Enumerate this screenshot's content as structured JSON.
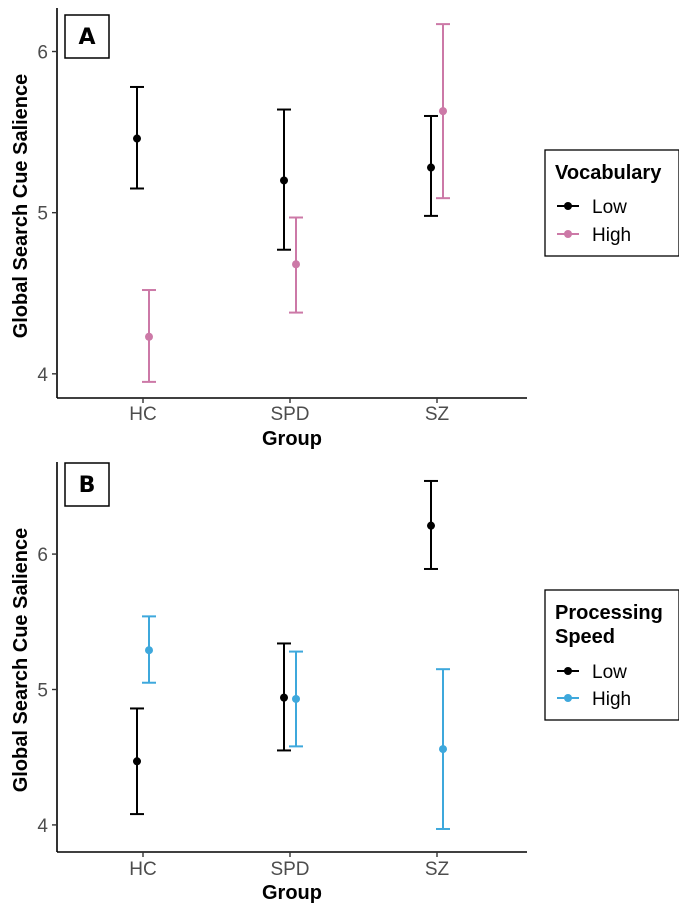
{
  "colors": {
    "low": "#000000",
    "vocab_high": "#cc79a7",
    "speed_high": "#3ea8dc"
  },
  "chart_data": [
    {
      "type": "scatter",
      "panel_label": "A",
      "xlabel": "Group",
      "ylabel": "Global Search Cue Salience",
      "categories": [
        "HC",
        "SPD",
        "SZ"
      ],
      "ylim": [
        3.85,
        6.27
      ],
      "yticks": [
        4,
        5,
        6
      ],
      "grid": false,
      "legend": {
        "title": [
          "Vocabulary"
        ],
        "placement": "right",
        "items": [
          "Low",
          "High"
        ]
      },
      "series": [
        {
          "name": "Low",
          "color": "#000000",
          "points": [
            {
              "category": "HC",
              "mean": 5.46,
              "lower": 5.15,
              "upper": 5.78
            },
            {
              "category": "SPD",
              "mean": 5.2,
              "lower": 4.77,
              "upper": 5.64
            },
            {
              "category": "SZ",
              "mean": 5.28,
              "lower": 4.98,
              "upper": 5.6
            }
          ]
        },
        {
          "name": "High",
          "color": "#cc79a7",
          "points": [
            {
              "category": "HC",
              "mean": 4.23,
              "lower": 3.95,
              "upper": 4.52
            },
            {
              "category": "SPD",
              "mean": 4.68,
              "lower": 4.38,
              "upper": 4.97
            },
            {
              "category": "SZ",
              "mean": 5.63,
              "lower": 5.09,
              "upper": 6.17
            }
          ]
        }
      ]
    },
    {
      "type": "scatter",
      "panel_label": "B",
      "xlabel": "Group",
      "ylabel": "Global Search Cue Salience",
      "categories": [
        "HC",
        "SPD",
        "SZ"
      ],
      "ylim": [
        3.8,
        6.68
      ],
      "yticks": [
        4,
        5,
        6
      ],
      "grid": false,
      "legend": {
        "title": [
          "Processing",
          "Speed"
        ],
        "placement": "right",
        "items": [
          "Low",
          "High"
        ]
      },
      "series": [
        {
          "name": "Low",
          "color": "#000000",
          "points": [
            {
              "category": "HC",
              "mean": 4.47,
              "lower": 4.08,
              "upper": 4.86
            },
            {
              "category": "SPD",
              "mean": 4.94,
              "lower": 4.55,
              "upper": 5.34
            },
            {
              "category": "SZ",
              "mean": 6.21,
              "lower": 5.89,
              "upper": 6.54
            }
          ]
        },
        {
          "name": "High",
          "color": "#3ea8dc",
          "points": [
            {
              "category": "HC",
              "mean": 5.29,
              "lower": 5.05,
              "upper": 5.54
            },
            {
              "category": "SPD",
              "mean": 4.93,
              "lower": 4.58,
              "upper": 5.28
            },
            {
              "category": "SZ",
              "mean": 4.56,
              "lower": 3.97,
              "upper": 5.15
            }
          ]
        }
      ]
    }
  ]
}
